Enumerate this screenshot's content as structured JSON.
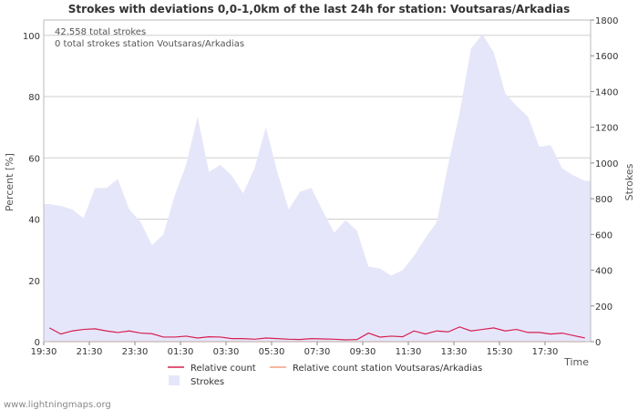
{
  "chart_data": {
    "type": "area",
    "title": "Strokes with deviations 0,0-1,0km of the last 24h for station: Voutsaras/Arkadias",
    "xlabel": "Time",
    "ylabel_left": "Percent   [%]",
    "ylabel_right": "Strokes",
    "ylim_left": [
      0,
      105
    ],
    "ylim_right": [
      0,
      1800
    ],
    "yticks_left": [
      0,
      20,
      40,
      60,
      80,
      100
    ],
    "yticks_right": [
      0,
      200,
      400,
      600,
      800,
      1000,
      1200,
      1400,
      1600,
      1800
    ],
    "x_tick_labels": [
      "19:30",
      "21:30",
      "23:30",
      "01:30",
      "03:30",
      "05:30",
      "07:30",
      "09:30",
      "11:30",
      "13:30",
      "15:30",
      "17:30"
    ],
    "x_tick_index_step": 4,
    "annotations": [
      "42.558 total strokes",
      "0 total strokes station Voutsaras/Arkadias"
    ],
    "series": [
      {
        "name": "Strokes",
        "axis": "right",
        "color": "#e6e6fa",
        "values": [
          770,
          760,
          740,
          690,
          860,
          860,
          910,
          740,
          670,
          540,
          600,
          820,
          990,
          1260,
          950,
          990,
          930,
          830,
          970,
          1200,
          950,
          740,
          840,
          860,
          730,
          610,
          680,
          620,
          420,
          410,
          370,
          400,
          480,
          580,
          670,
          990,
          1280,
          1640,
          1720,
          1620,
          1390,
          1320,
          1260,
          1090,
          1100,
          970,
          930,
          900
        ]
      },
      {
        "name": "Relative count",
        "axis": "left",
        "color": "#d62050",
        "values": [
          4.5,
          2.5,
          3.5,
          4,
          4.2,
          3.5,
          3,
          3.5,
          2.8,
          2.6,
          1.5,
          1.5,
          1.8,
          1.2,
          1.6,
          1.5,
          1,
          1,
          0.8,
          1.2,
          1,
          0.8,
          0.7,
          1,
          0.9,
          0.8,
          0.6,
          0.7,
          2.8,
          1.5,
          1.8,
          1.6,
          3.5,
          2.5,
          3.5,
          3.2,
          4.8,
          3.5,
          4,
          4.5,
          3.5,
          4,
          3,
          3,
          2.5,
          2.8,
          2,
          1.2
        ]
      },
      {
        "name": "Relative count station Voutsaras/Arkadias",
        "axis": "left",
        "color": "#f0a080",
        "values": [
          0,
          0,
          0,
          0,
          0,
          0,
          0,
          0,
          0,
          0,
          0,
          0,
          0,
          0,
          0,
          0,
          0,
          0,
          0,
          0,
          0,
          0,
          0,
          0,
          0,
          0,
          0,
          0,
          0,
          0,
          0,
          0,
          0,
          0,
          0,
          0,
          0,
          0,
          0,
          0,
          0,
          0,
          0,
          0,
          0,
          0,
          0,
          0
        ]
      }
    ],
    "legend_placement": "bottom-center"
  },
  "credit": "www.lightningmaps.org"
}
